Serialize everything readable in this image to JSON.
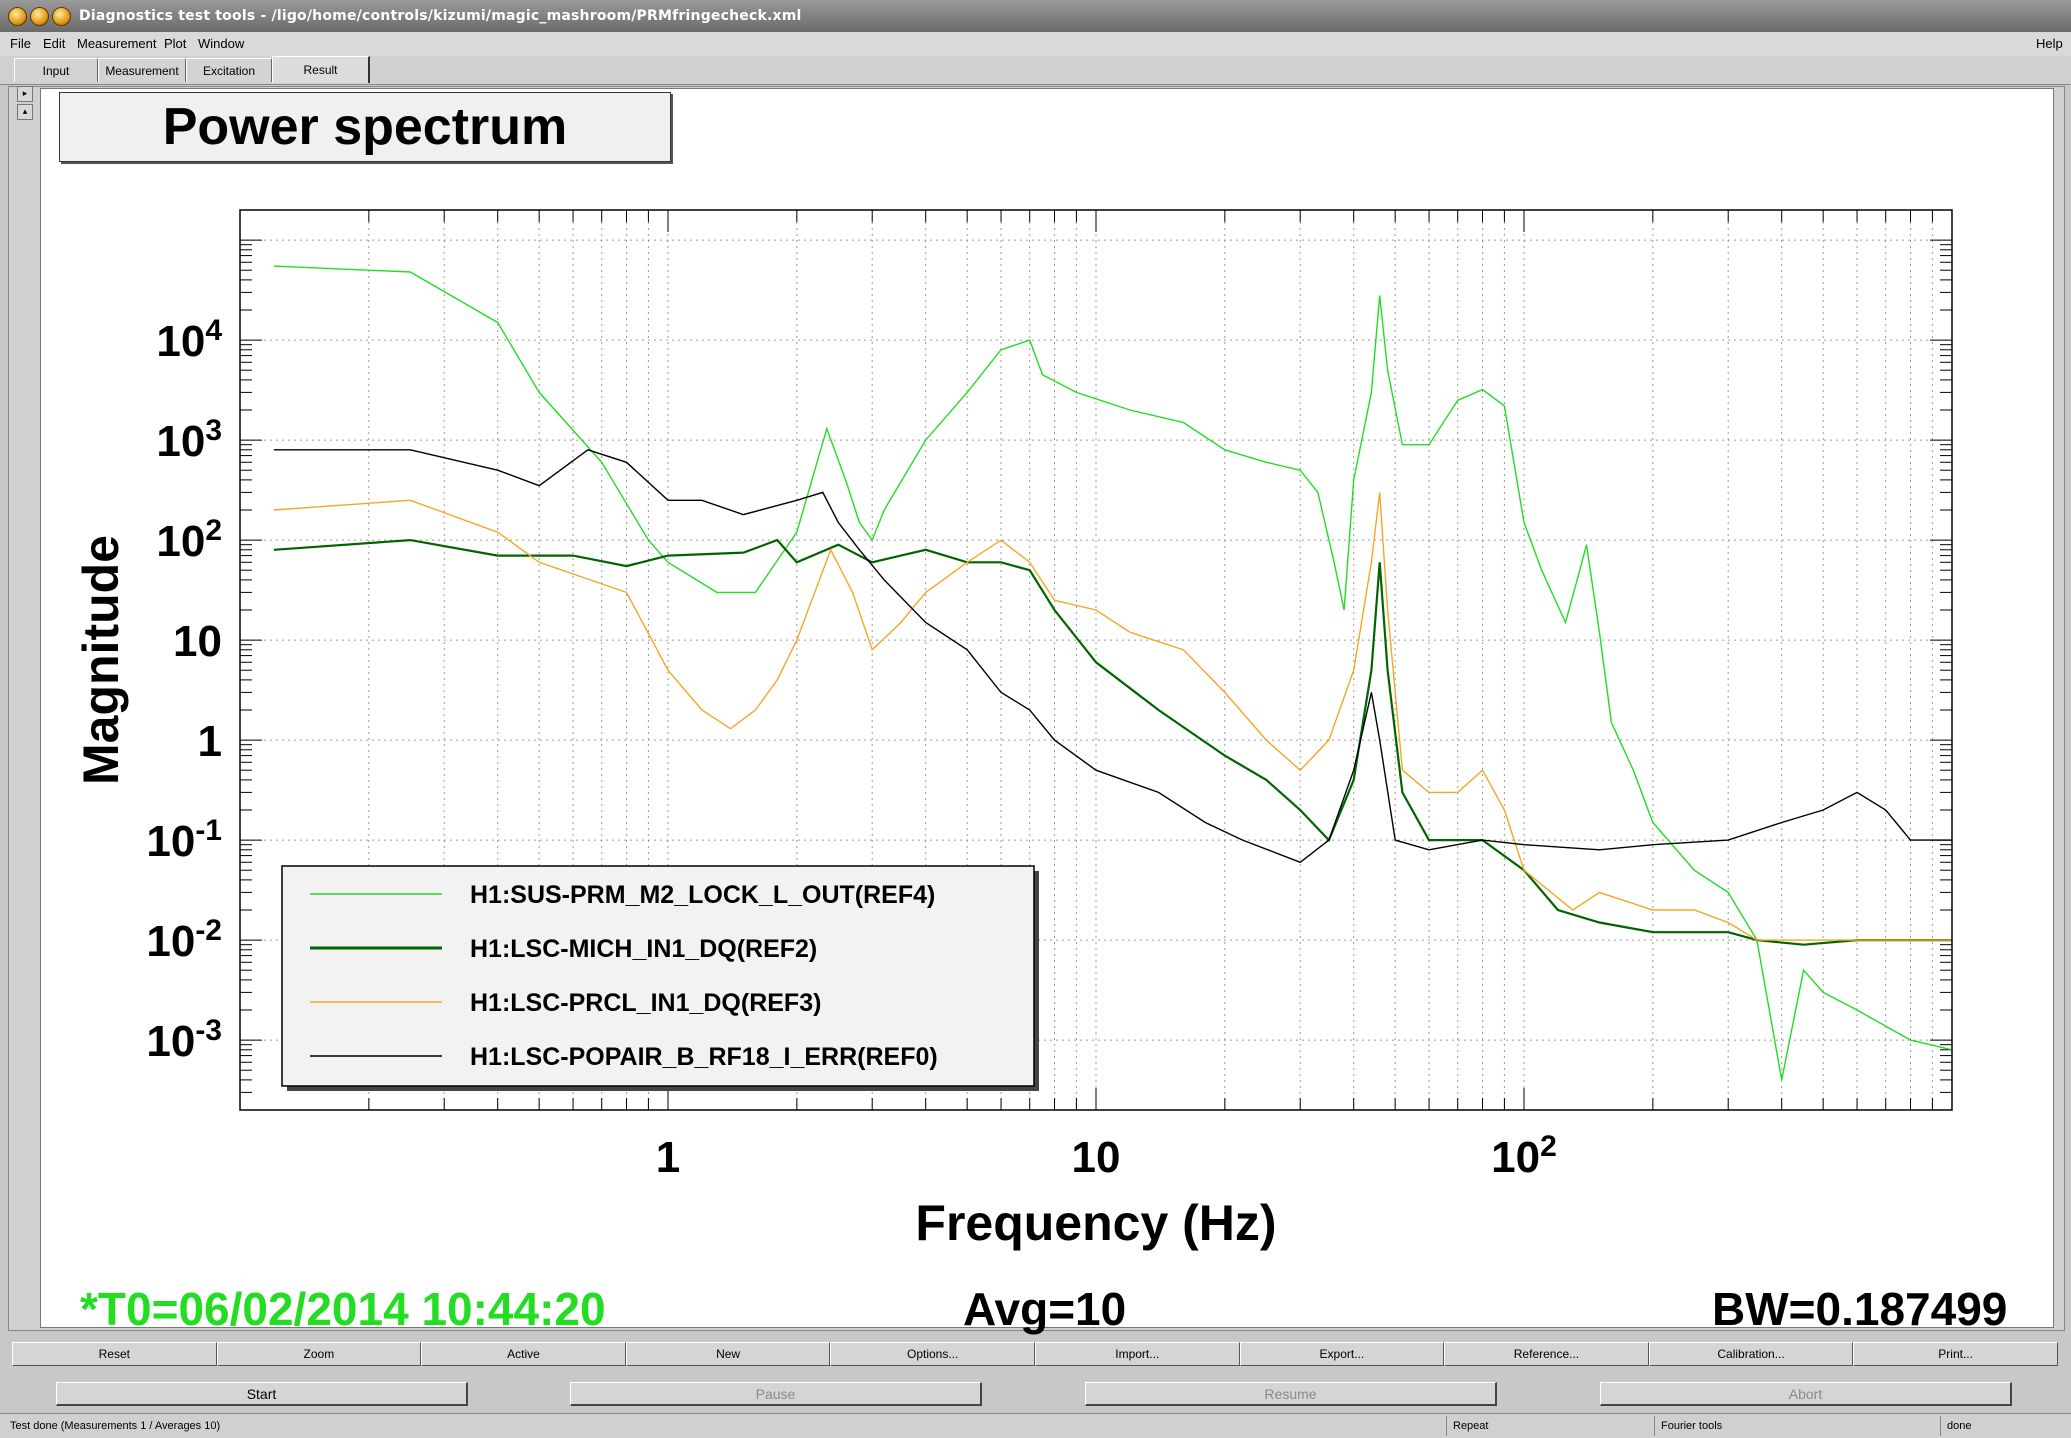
{
  "window": {
    "title": "Diagnostics test tools - /ligo/home/controls/kizumi/magic_mashroom/PRMfringecheck.xml"
  },
  "menu": {
    "file": "File",
    "edit": "Edit",
    "measurement": "Measurement",
    "plot": "Plot",
    "window": "Window",
    "help": "Help"
  },
  "tabs": {
    "input": "Input",
    "measurement": "Measurement",
    "excitation": "Excitation",
    "result": "Result"
  },
  "plot": {
    "title": "Power spectrum",
    "t0": "*T0=06/02/2014 10:44:20",
    "avg": "Avg=10",
    "bw": "BW=0.187499"
  },
  "chart_data": {
    "type": "line",
    "title": "Power spectrum",
    "xlabel": "Frequency (Hz)",
    "ylabel": "Magnitude",
    "x_scale": "log",
    "y_scale": "log",
    "xlim": [
      0.1,
      1000
    ],
    "ylim": [
      0.0002,
      200000
    ],
    "x_ticks": [
      {
        "value": 1,
        "label": "1"
      },
      {
        "value": 10,
        "label": "10"
      },
      {
        "value": 100,
        "label": "10^2"
      }
    ],
    "y_ticks": [
      {
        "value": 0.001,
        "label": "10^-3"
      },
      {
        "value": 0.01,
        "label": "10^-2"
      },
      {
        "value": 0.1,
        "label": "10^-1"
      },
      {
        "value": 1,
        "label": "1"
      },
      {
        "value": 10,
        "label": "10"
      },
      {
        "value": 100,
        "label": "10^2"
      },
      {
        "value": 1000,
        "label": "10^3"
      },
      {
        "value": 10000,
        "label": "10^4"
      }
    ],
    "grid": true,
    "legend_position": "bottom-left",
    "series": [
      {
        "name": "H1:SUS-PRM_M2_LOCK_L_OUT(REF4)",
        "color": "#22dd22",
        "points": [
          [
            0.12,
            55000
          ],
          [
            0.25,
            48000
          ],
          [
            0.4,
            15000
          ],
          [
            0.5,
            3000
          ],
          [
            0.7,
            600
          ],
          [
            0.9,
            100
          ],
          [
            1.0,
            60
          ],
          [
            1.3,
            30
          ],
          [
            1.6,
            30
          ],
          [
            2.0,
            120
          ],
          [
            2.35,
            1300
          ],
          [
            2.6,
            400
          ],
          [
            2.8,
            150
          ],
          [
            3.0,
            100
          ],
          [
            3.2,
            200
          ],
          [
            4.0,
            1000
          ],
          [
            5.0,
            3000
          ],
          [
            6.0,
            8000
          ],
          [
            7.0,
            10000
          ],
          [
            7.5,
            4500
          ],
          [
            9.0,
            3000
          ],
          [
            12,
            2000
          ],
          [
            16,
            1500
          ],
          [
            20,
            800
          ],
          [
            25,
            600
          ],
          [
            30,
            500
          ],
          [
            33,
            300
          ],
          [
            36,
            60
          ],
          [
            38,
            20
          ],
          [
            40,
            400
          ],
          [
            44,
            3000
          ],
          [
            46,
            28000
          ],
          [
            48,
            5000
          ],
          [
            52,
            900
          ],
          [
            60,
            900
          ],
          [
            70,
            2500
          ],
          [
            80,
            3200
          ],
          [
            90,
            2200
          ],
          [
            100,
            150
          ],
          [
            110,
            50
          ],
          [
            125,
            15
          ],
          [
            135,
            50
          ],
          [
            140,
            90
          ],
          [
            150,
            12
          ],
          [
            160,
            1.5
          ],
          [
            180,
            0.5
          ],
          [
            200,
            0.15
          ],
          [
            250,
            0.05
          ],
          [
            300,
            0.03
          ],
          [
            350,
            0.01
          ],
          [
            400,
            0.0004
          ],
          [
            450,
            0.005
          ],
          [
            500,
            0.003
          ],
          [
            600,
            0.002
          ],
          [
            800,
            0.001
          ],
          [
            1000,
            0.0008
          ]
        ]
      },
      {
        "name": "H1:LSC-MICH_IN1_DQ(REF2)",
        "color": "#006400",
        "points": [
          [
            0.12,
            80
          ],
          [
            0.25,
            100
          ],
          [
            0.4,
            70
          ],
          [
            0.6,
            70
          ],
          [
            0.8,
            55
          ],
          [
            1.0,
            70
          ],
          [
            1.5,
            75
          ],
          [
            1.8,
            100
          ],
          [
            2.0,
            60
          ],
          [
            2.5,
            90
          ],
          [
            3.0,
            60
          ],
          [
            3.5,
            70
          ],
          [
            4,
            80
          ],
          [
            5,
            60
          ],
          [
            6,
            60
          ],
          [
            7,
            50
          ],
          [
            8,
            20
          ],
          [
            10,
            6
          ],
          [
            14,
            2
          ],
          [
            20,
            0.7
          ],
          [
            25,
            0.4
          ],
          [
            30,
            0.2
          ],
          [
            35,
            0.1
          ],
          [
            40,
            0.4
          ],
          [
            44,
            5
          ],
          [
            46,
            60
          ],
          [
            48,
            5
          ],
          [
            52,
            0.3
          ],
          [
            60,
            0.1
          ],
          [
            80,
            0.1
          ],
          [
            100,
            0.05
          ],
          [
            120,
            0.02
          ],
          [
            150,
            0.015
          ],
          [
            200,
            0.012
          ],
          [
            250,
            0.012
          ],
          [
            300,
            0.012
          ],
          [
            350,
            0.01
          ],
          [
            450,
            0.009
          ],
          [
            600,
            0.01
          ],
          [
            800,
            0.01
          ],
          [
            1000,
            0.01
          ]
        ]
      },
      {
        "name": "H1:LSC-PRCL_IN1_DQ(REF3)",
        "color": "#f5a623",
        "points": [
          [
            0.12,
            200
          ],
          [
            0.25,
            250
          ],
          [
            0.4,
            120
          ],
          [
            0.5,
            60
          ],
          [
            0.8,
            30
          ],
          [
            1.0,
            5
          ],
          [
            1.2,
            2
          ],
          [
            1.4,
            1.3
          ],
          [
            1.6,
            2
          ],
          [
            1.8,
            4
          ],
          [
            2.0,
            10
          ],
          [
            2.4,
            80
          ],
          [
            2.7,
            30
          ],
          [
            3.0,
            8
          ],
          [
            3.5,
            15
          ],
          [
            4,
            30
          ],
          [
            5,
            60
          ],
          [
            6,
            100
          ],
          [
            7,
            60
          ],
          [
            8,
            25
          ],
          [
            10,
            20
          ],
          [
            12,
            12
          ],
          [
            16,
            8
          ],
          [
            20,
            3
          ],
          [
            25,
            1
          ],
          [
            30,
            0.5
          ],
          [
            35,
            1
          ],
          [
            40,
            5
          ],
          [
            44,
            60
          ],
          [
            46,
            300
          ],
          [
            48,
            20
          ],
          [
            52,
            0.5
          ],
          [
            60,
            0.3
          ],
          [
            70,
            0.3
          ],
          [
            80,
            0.5
          ],
          [
            90,
            0.2
          ],
          [
            100,
            0.05
          ],
          [
            130,
            0.02
          ],
          [
            150,
            0.03
          ],
          [
            200,
            0.02
          ],
          [
            250,
            0.02
          ],
          [
            300,
            0.015
          ],
          [
            350,
            0.01
          ],
          [
            450,
            0.01
          ],
          [
            600,
            0.01
          ],
          [
            800,
            0.01
          ],
          [
            1000,
            0.01
          ]
        ]
      },
      {
        "name": "H1:LSC-POPAIR_B_RF18_I_ERR(REF0)",
        "color": "#000000",
        "points": [
          [
            0.12,
            800
          ],
          [
            0.25,
            800
          ],
          [
            0.4,
            500
          ],
          [
            0.5,
            350
          ],
          [
            0.65,
            800
          ],
          [
            0.8,
            600
          ],
          [
            1.0,
            250
          ],
          [
            1.2,
            250
          ],
          [
            1.5,
            180
          ],
          [
            2.0,
            250
          ],
          [
            2.3,
            300
          ],
          [
            2.5,
            150
          ],
          [
            2.8,
            80
          ],
          [
            3.2,
            40
          ],
          [
            4,
            15
          ],
          [
            5,
            8
          ],
          [
            6,
            3
          ],
          [
            7,
            2
          ],
          [
            8,
            1
          ],
          [
            10,
            0.5
          ],
          [
            14,
            0.3
          ],
          [
            18,
            0.15
          ],
          [
            22,
            0.1
          ],
          [
            30,
            0.06
          ],
          [
            35,
            0.1
          ],
          [
            40,
            0.5
          ],
          [
            44,
            3
          ],
          [
            46,
            1
          ],
          [
            50,
            0.1
          ],
          [
            60,
            0.08
          ],
          [
            80,
            0.1
          ],
          [
            100,
            0.09
          ],
          [
            150,
            0.08
          ],
          [
            200,
            0.09
          ],
          [
            300,
            0.1
          ],
          [
            400,
            0.15
          ],
          [
            500,
            0.2
          ],
          [
            600,
            0.3
          ],
          [
            700,
            0.2
          ],
          [
            800,
            0.1
          ],
          [
            1000,
            0.1
          ]
        ]
      }
    ]
  },
  "buttons": {
    "reset": "Reset",
    "zoom": "Zoom",
    "active": "Active",
    "new": "New",
    "options": "Options...",
    "import": "Import...",
    "export": "Export...",
    "reference": "Reference...",
    "calibration": "Calibration...",
    "print": "Print..."
  },
  "controls": {
    "start": "Start",
    "pause": "Pause",
    "resume": "Resume",
    "abort": "Abort"
  },
  "status": {
    "message": "Test done (Measurements 1 / Averages 10)",
    "repeat": "Repeat",
    "fourier": "Fourier tools",
    "state": "done"
  }
}
